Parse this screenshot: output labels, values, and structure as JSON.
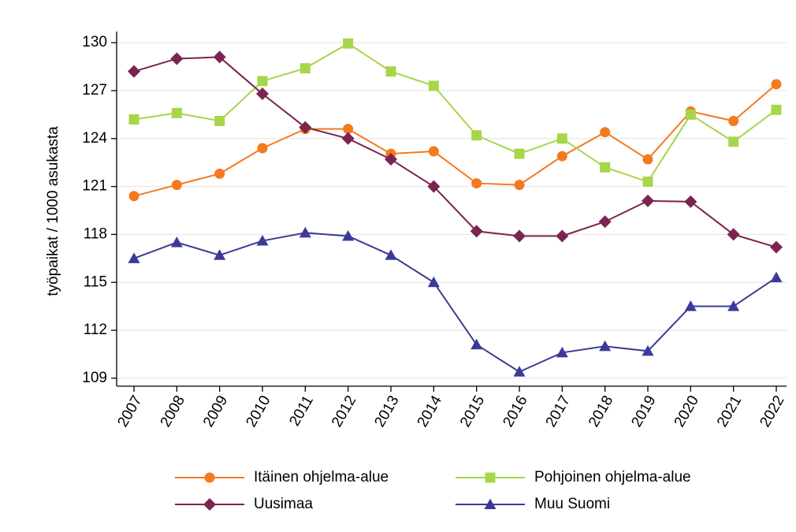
{
  "chart_data": {
    "type": "line",
    "y_label": "työpaikat / 1000 asukasta",
    "categories": [
      "2007",
      "2008",
      "2009",
      "2010",
      "2011",
      "2012",
      "2013",
      "2014",
      "2015",
      "2016",
      "2017",
      "2018",
      "2019",
      "2020",
      "2021",
      "2022"
    ],
    "ylim": [
      108.5,
      130.7
    ],
    "yticks": [
      109,
      112,
      115,
      118,
      121,
      124,
      127,
      130
    ],
    "grid": true,
    "legend": "bottom",
    "series": [
      {
        "name": "Itäinen ohjelma-alue",
        "color": "#f47a20",
        "marker": "circle",
        "values": [
          120.4,
          121.1,
          121.8,
          123.4,
          124.6,
          124.6,
          123.05,
          123.2,
          121.2,
          121.1,
          122.9,
          124.4,
          122.7,
          125.7,
          125.1,
          127.4
        ]
      },
      {
        "name": "Pohjoinen ohjelma-alue",
        "color": "#a6d64a",
        "marker": "square",
        "values": [
          125.2,
          125.6,
          125.1,
          127.6,
          128.4,
          129.95,
          128.2,
          127.3,
          124.2,
          123.05,
          124.0,
          122.2,
          121.3,
          125.5,
          123.8,
          125.8
        ]
      },
      {
        "name": "Uusimaa",
        "color": "#7b2450",
        "marker": "diamond",
        "values": [
          128.2,
          129.0,
          129.1,
          126.8,
          124.7,
          124.0,
          122.7,
          121.0,
          118.2,
          117.9,
          117.9,
          118.8,
          120.1,
          120.05,
          118.0,
          117.2
        ]
      },
      {
        "name": "Muu Suomi",
        "color": "#3c3a98",
        "marker": "triangle",
        "values": [
          116.5,
          117.5,
          116.7,
          117.6,
          118.1,
          117.9,
          116.7,
          115.0,
          111.1,
          109.4,
          110.6,
          111.0,
          110.7,
          113.5,
          113.5,
          115.3
        ]
      }
    ]
  }
}
